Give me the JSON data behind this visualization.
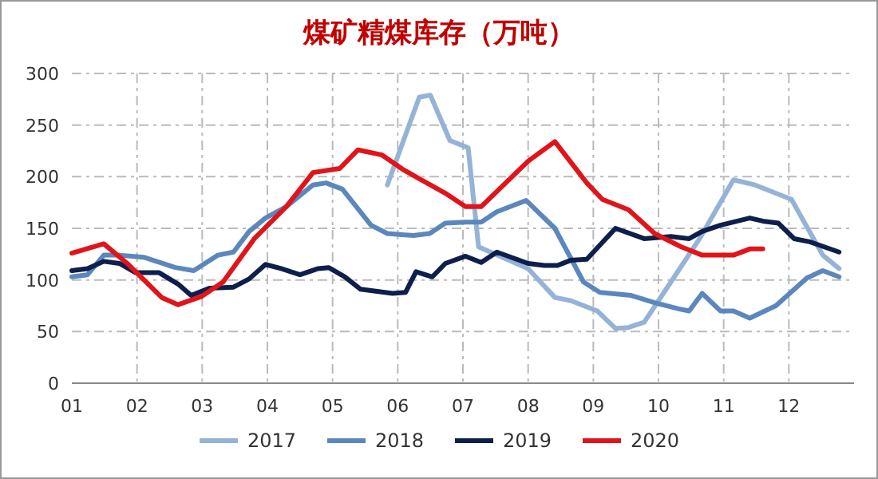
{
  "chart_data": {
    "type": "line",
    "title": "煤矿精煤库存（万吨）",
    "xlim": [
      1,
      13
    ],
    "ylim": [
      0,
      300
    ],
    "xticks": [
      {
        "value": 1,
        "label": "01"
      },
      {
        "value": 2,
        "label": "02"
      },
      {
        "value": 3,
        "label": "03"
      },
      {
        "value": 4,
        "label": "04"
      },
      {
        "value": 5,
        "label": "05"
      },
      {
        "value": 6,
        "label": "06"
      },
      {
        "value": 7,
        "label": "07"
      },
      {
        "value": 8,
        "label": "08"
      },
      {
        "value": 9,
        "label": "09"
      },
      {
        "value": 10,
        "label": "10"
      },
      {
        "value": 11,
        "label": "11"
      },
      {
        "value": 12,
        "label": "12"
      }
    ],
    "yticks": [
      0,
      50,
      100,
      150,
      200,
      250,
      300
    ],
    "grid": true,
    "legend": "bottom",
    "line_style": "solid",
    "marker": "none",
    "series": [
      {
        "name": "2017",
        "color": "#95b3d7",
        "x": [
          5.84,
          6.33,
          6.5,
          6.8,
          7.08,
          7.24,
          8.0,
          8.41,
          8.65,
          9.06,
          9.34,
          9.54,
          9.78,
          10.19,
          10.63,
          11.15,
          11.48,
          12.04,
          12.52,
          12.77
        ],
        "values": [
          192,
          277,
          279,
          235,
          228,
          132,
          111,
          83,
          80,
          70,
          53,
          54,
          59,
          98,
          140,
          197,
          192,
          178,
          124,
          111
        ]
      },
      {
        "name": "2018",
        "color": "#5b87bd",
        "x": [
          1.0,
          1.24,
          1.49,
          1.73,
          2.1,
          2.59,
          2.87,
          3.24,
          3.48,
          3.72,
          3.97,
          4.29,
          4.7,
          4.9,
          5.15,
          5.59,
          5.84,
          6.24,
          6.49,
          6.73,
          7.04,
          7.28,
          7.52,
          7.97,
          8.41,
          8.85,
          9.1,
          9.58,
          9.94,
          10.31,
          10.47,
          10.67,
          10.95,
          11.15,
          11.4,
          11.8,
          12.28,
          12.52,
          12.77
        ],
        "values": [
          103,
          105,
          124,
          124,
          122,
          112,
          109,
          124,
          127,
          147,
          160,
          171,
          192,
          194,
          188,
          153,
          145,
          143,
          145,
          155,
          156,
          156,
          166,
          177,
          150,
          98,
          88,
          85,
          78,
          72,
          70,
          87,
          70,
          70,
          63,
          75,
          102,
          109,
          103
        ]
      },
      {
        "name": "2019",
        "color": "#0d1f4a",
        "x": [
          1.0,
          1.24,
          1.49,
          1.73,
          1.98,
          2.34,
          2.63,
          2.83,
          3.11,
          3.48,
          3.72,
          3.97,
          4.21,
          4.5,
          4.78,
          4.94,
          5.19,
          5.43,
          5.92,
          6.12,
          6.28,
          6.53,
          6.73,
          7.04,
          7.28,
          7.52,
          8.0,
          8.25,
          8.45,
          8.65,
          8.9,
          9.34,
          9.78,
          10.19,
          10.47,
          10.67,
          10.95,
          11.4,
          11.6,
          11.84,
          12.08,
          12.32,
          12.77
        ],
        "values": [
          109,
          111,
          118,
          116,
          107,
          107,
          96,
          85,
          92,
          93,
          101,
          115,
          111,
          105,
          111,
          112,
          103,
          91,
          87,
          88,
          108,
          103,
          116,
          123,
          117,
          127,
          116,
          114,
          114,
          119,
          120,
          150,
          140,
          142,
          140,
          147,
          153,
          160,
          157,
          155,
          140,
          137,
          127
        ]
      },
      {
        "name": "2020",
        "color": "#e0141b",
        "x": [
          1.0,
          1.49,
          1.85,
          2.38,
          2.63,
          2.99,
          3.32,
          3.8,
          4.29,
          4.7,
          5.11,
          5.39,
          5.76,
          6.08,
          6.33,
          6.73,
          7.04,
          7.28,
          8.0,
          8.41,
          8.9,
          9.14,
          9.54,
          9.94,
          10.35,
          10.67,
          11.15,
          11.4,
          11.6
        ],
        "values": [
          126,
          135,
          116,
          83,
          76,
          84,
          98,
          140,
          171,
          204,
          208,
          226,
          221,
          207,
          198,
          184,
          171,
          171,
          215,
          234,
          194,
          178,
          168,
          145,
          132,
          124,
          124,
          130,
          130
        ]
      }
    ]
  }
}
